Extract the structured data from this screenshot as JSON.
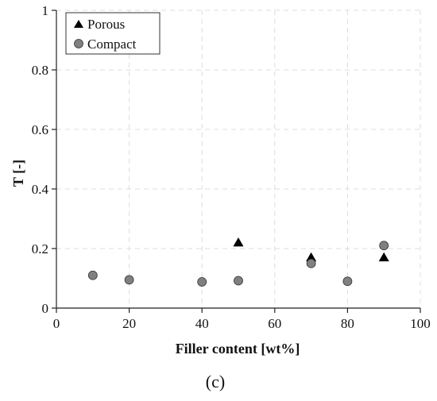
{
  "chart_data": {
    "type": "scatter",
    "xlabel": "Filler content [wt%]",
    "ylabel": "T [-]",
    "xlim": [
      0,
      100
    ],
    "ylim": [
      0,
      1
    ],
    "x_ticks": [
      "0",
      "20",
      "40",
      "60",
      "80",
      "100"
    ],
    "y_ticks": [
      "0",
      "0.2",
      "0.4",
      "0.6",
      "0.8",
      "1"
    ],
    "grid": true,
    "legend_position": "top-left",
    "series": [
      {
        "name": "Porous",
        "marker": "triangle",
        "color": "#000000",
        "points": [
          {
            "x": 50,
            "y": 0.22
          },
          {
            "x": 70,
            "y": 0.17
          },
          {
            "x": 90,
            "y": 0.17
          }
        ]
      },
      {
        "name": "Compact",
        "marker": "circle",
        "color": "#808080",
        "points": [
          {
            "x": 10,
            "y": 0.11
          },
          {
            "x": 20,
            "y": 0.095
          },
          {
            "x": 40,
            "y": 0.088
          },
          {
            "x": 50,
            "y": 0.092
          },
          {
            "x": 70,
            "y": 0.15
          },
          {
            "x": 80,
            "y": 0.09
          },
          {
            "x": 90,
            "y": 0.21
          }
        ]
      }
    ]
  },
  "panel_label": "(c)"
}
